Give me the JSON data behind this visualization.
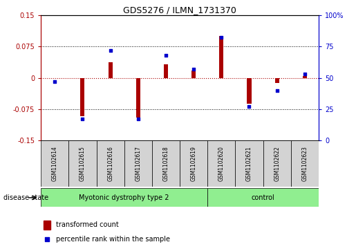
{
  "title": "GDS5276 / ILMN_1731370",
  "samples": [
    "GSM1102614",
    "GSM1102615",
    "GSM1102616",
    "GSM1102617",
    "GSM1102618",
    "GSM1102619",
    "GSM1102620",
    "GSM1102621",
    "GSM1102622",
    "GSM1102623"
  ],
  "red_values": [
    0.0,
    -0.092,
    0.038,
    -0.095,
    0.032,
    0.018,
    0.1,
    -0.062,
    -0.012,
    0.005
  ],
  "blue_values": [
    47,
    17,
    72,
    17,
    68,
    57,
    82,
    27,
    40,
    53
  ],
  "groups": [
    {
      "label": "Myotonic dystrophy type 2",
      "start": 0,
      "end": 5
    },
    {
      "label": "control",
      "start": 6,
      "end": 9
    }
  ],
  "ylim_left": [
    -0.15,
    0.15
  ],
  "ylim_right": [
    0,
    100
  ],
  "yticks_left": [
    -0.15,
    -0.075,
    0,
    0.075,
    0.15
  ],
  "yticks_right": [
    0,
    25,
    50,
    75,
    100
  ],
  "red_color": "#AA0000",
  "blue_color": "#0000CC",
  "group_bg_color": "#90EE90",
  "sample_bg_color": "#D3D3D3",
  "legend_red_label": "transformed count",
  "legend_blue_label": "percentile rank within the sample",
  "disease_state_label": "disease state",
  "bar_width": 0.15
}
